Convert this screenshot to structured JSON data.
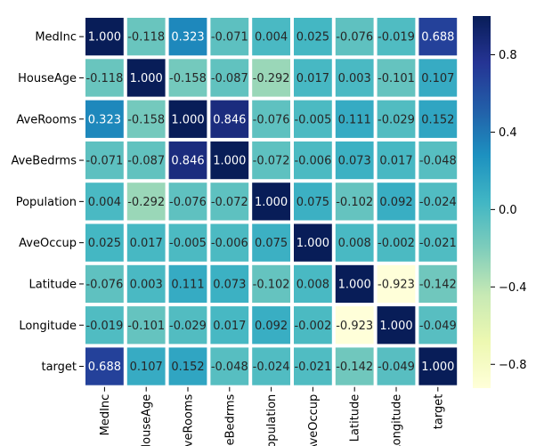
{
  "chart_data": {
    "type": "heatmap",
    "title": "",
    "rows": [
      "MedInc",
      "HouseAge",
      "AveRooms",
      "AveBedrms",
      "Population",
      "AveOccup",
      "Latitude",
      "Longitude",
      "target"
    ],
    "columns": [
      "MedInc",
      "HouseAge",
      "AveRooms",
      "AveBedrms",
      "Population",
      "AveOccup",
      "Latitude",
      "Longitude",
      "target"
    ],
    "column_tick_labels": [
      "MedInc",
      "HouseAge",
      "AveRooms",
      "AveBedrms",
      "Population",
      "AveOccup",
      "Latitude",
      "Longitude",
      "target"
    ],
    "values": [
      [
        1.0,
        -0.118,
        0.323,
        -0.071,
        0.004,
        0.025,
        -0.076,
        -0.019,
        0.688
      ],
      [
        -0.118,
        1.0,
        -0.158,
        -0.087,
        -0.292,
        0.017,
        0.003,
        -0.101,
        0.107
      ],
      [
        0.323,
        -0.158,
        1.0,
        0.846,
        -0.076,
        -0.005,
        0.111,
        -0.029,
        0.152
      ],
      [
        -0.071,
        -0.087,
        0.846,
        1.0,
        -0.072,
        -0.006,
        0.073,
        0.017,
        -0.048
      ],
      [
        0.004,
        -0.292,
        -0.076,
        -0.072,
        1.0,
        0.075,
        -0.102,
        0.092,
        -0.024
      ],
      [
        0.025,
        0.017,
        -0.005,
        -0.006,
        0.075,
        1.0,
        0.008,
        -0.002,
        -0.021
      ],
      [
        -0.076,
        0.003,
        0.111,
        0.073,
        -0.102,
        0.008,
        1.0,
        -0.923,
        -0.142
      ],
      [
        -0.019,
        -0.101,
        -0.029,
        0.017,
        0.092,
        -0.002,
        -0.923,
        1.0,
        -0.049
      ],
      [
        0.688,
        0.107,
        0.152,
        -0.048,
        -0.024,
        -0.021,
        -0.142,
        -0.049,
        1.0
      ]
    ],
    "value_format": "3 decimals",
    "colormap": "YlGnBu",
    "color_range": [
      -0.923,
      1.0
    ],
    "colorbar_ticks": [
      0.8,
      0.4,
      0.0,
      -0.4,
      -0.8
    ],
    "colorbar_tick_labels": [
      "0.8",
      "0.4",
      "0.0",
      "−0.4",
      "−0.8"
    ],
    "cell_separator_color": "#ffffff",
    "annotation_colors": {
      "light": "#ffffff",
      "dark": "#262626"
    }
  }
}
